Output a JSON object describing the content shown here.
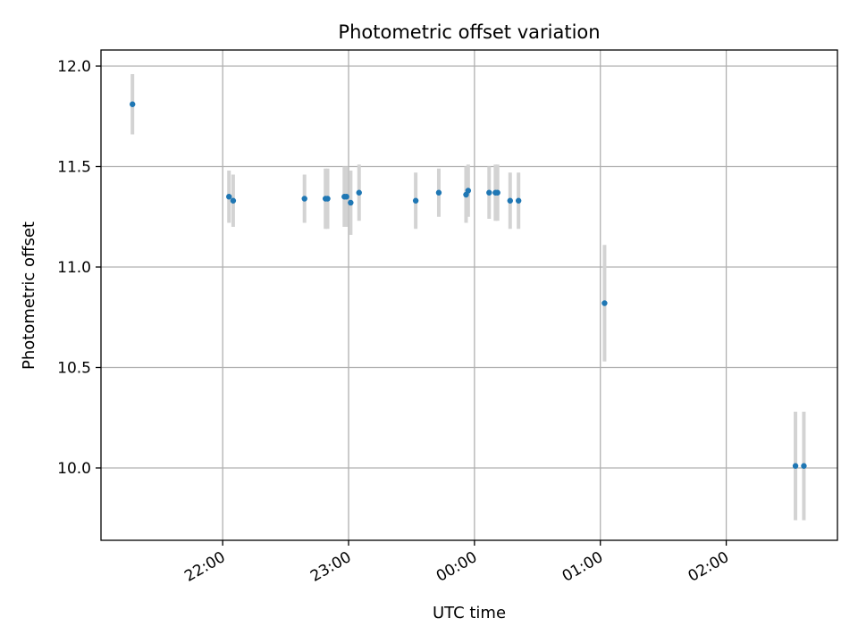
{
  "chart_data": {
    "type": "scatter",
    "title": "Photometric offset variation",
    "xlabel": "UTC time",
    "ylabel": "Photometric offset",
    "x_axis_type": "time",
    "x_ticks": [
      "22:00",
      "23:00",
      "00:00",
      "01:00",
      "02:00"
    ],
    "y_ticks": [
      "10.0",
      "10.5",
      "11.0",
      "11.5",
      "12.0"
    ],
    "grid": true,
    "point_color": "#1f77b4",
    "errorbar_color": "#d3d3d3",
    "series": [
      {
        "points": [
          {
            "t": "21:17",
            "y": 11.81,
            "err": 0.15
          },
          {
            "t": "22:03",
            "y": 11.35,
            "err": 0.13
          },
          {
            "t": "22:05",
            "y": 11.33,
            "err": 0.13
          },
          {
            "t": "22:39",
            "y": 11.34,
            "err": 0.12
          },
          {
            "t": "22:49",
            "y": 11.34,
            "err": 0.15
          },
          {
            "t": "22:50",
            "y": 11.34,
            "err": 0.15
          },
          {
            "t": "22:58",
            "y": 11.35,
            "err": 0.15
          },
          {
            "t": "22:59",
            "y": 11.35,
            "err": 0.15
          },
          {
            "t": "23:01",
            "y": 11.32,
            "err": 0.16
          },
          {
            "t": "23:05",
            "y": 11.37,
            "err": 0.14
          },
          {
            "t": "23:32",
            "y": 11.33,
            "err": 0.14
          },
          {
            "t": "23:43",
            "y": 11.37,
            "err": 0.12
          },
          {
            "t": "23:56",
            "y": 11.36,
            "err": 0.14
          },
          {
            "t": "23:57",
            "y": 11.38,
            "err": 0.13
          },
          {
            "t": "24:07",
            "y": 11.37,
            "err": 0.13
          },
          {
            "t": "24:10",
            "y": 11.37,
            "err": 0.14
          },
          {
            "t": "24:11",
            "y": 11.37,
            "err": 0.14
          },
          {
            "t": "24:17",
            "y": 11.33,
            "err": 0.14
          },
          {
            "t": "24:21",
            "y": 11.33,
            "err": 0.14
          },
          {
            "t": "25:02",
            "y": 10.82,
            "err": 0.29
          },
          {
            "t": "26:33",
            "y": 10.01,
            "err": 0.27
          },
          {
            "t": "26:37",
            "y": 10.01,
            "err": 0.27
          }
        ]
      }
    ]
  }
}
